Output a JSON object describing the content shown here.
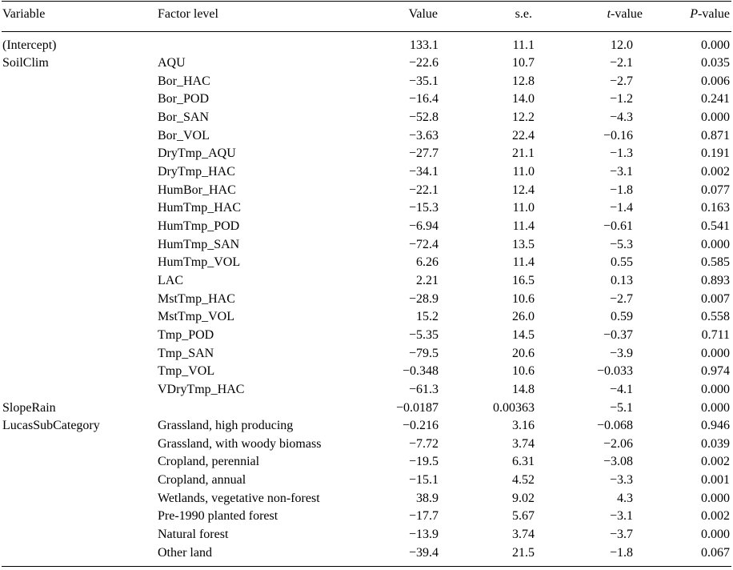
{
  "header": {
    "variable": "Variable",
    "factor_level": "Factor level",
    "value": "Value",
    "se": "s.e.",
    "t_italic": "t",
    "t_rest": "-value",
    "p_italic": "P",
    "p_rest": "-value"
  },
  "rows": [
    {
      "variable": "(Intercept)",
      "level": "",
      "value": "133.1",
      "se": "11.1",
      "t": "12.0",
      "p": "0.000"
    },
    {
      "variable": "SoilClim",
      "level": "AQU",
      "value": "−22.6",
      "se": "10.7",
      "t": "−2.1",
      "p": "0.035"
    },
    {
      "variable": "",
      "level": "Bor_HAC",
      "value": "−35.1",
      "se": "12.8",
      "t": "−2.7",
      "p": "0.006"
    },
    {
      "variable": "",
      "level": "Bor_POD",
      "value": "−16.4",
      "se": "14.0",
      "t": "−1.2",
      "p": "0.241"
    },
    {
      "variable": "",
      "level": "Bor_SAN",
      "value": "−52.8",
      "se": "12.2",
      "t": "−4.3",
      "p": "0.000"
    },
    {
      "variable": "",
      "level": "Bor_VOL",
      "value": "−3.63",
      "se": "22.4",
      "t": "−0.16",
      "p": "0.871"
    },
    {
      "variable": "",
      "level": "DryTmp_AQU",
      "value": "−27.7",
      "se": "21.1",
      "t": "−1.3",
      "p": "0.191"
    },
    {
      "variable": "",
      "level": "DryTmp_HAC",
      "value": "−34.1",
      "se": "11.0",
      "t": "−3.1",
      "p": "0.002"
    },
    {
      "variable": "",
      "level": "HumBor_HAC",
      "value": "−22.1",
      "se": "12.4",
      "t": "−1.8",
      "p": "0.077"
    },
    {
      "variable": "",
      "level": "HumTmp_HAC",
      "value": "−15.3",
      "se": "11.0",
      "t": "−1.4",
      "p": "0.163"
    },
    {
      "variable": "",
      "level": "HumTmp_POD",
      "value": "−6.94",
      "se": "11.4",
      "t": "−0.61",
      "p": "0.541"
    },
    {
      "variable": "",
      "level": "HumTmp_SAN",
      "value": "−72.4",
      "se": "13.5",
      "t": "−5.3",
      "p": "0.000"
    },
    {
      "variable": "",
      "level": "HumTmp_VOL",
      "value": "6.26",
      "se": "11.4",
      "t": "0.55",
      "p": "0.585"
    },
    {
      "variable": "",
      "level": "LAC",
      "value": "2.21",
      "se": "16.5",
      "t": "0.13",
      "p": "0.893"
    },
    {
      "variable": "",
      "level": "MstTmp_HAC",
      "value": "−28.9",
      "se": "10.6",
      "t": "−2.7",
      "p": "0.007"
    },
    {
      "variable": "",
      "level": "MstTmp_VOL",
      "value": "15.2",
      "se": "26.0",
      "t": "0.59",
      "p": "0.558"
    },
    {
      "variable": "",
      "level": "Tmp_POD",
      "value": "−5.35",
      "se": "14.5",
      "t": "−0.37",
      "p": "0.711"
    },
    {
      "variable": "",
      "level": "Tmp_SAN",
      "value": "−79.5",
      "se": "20.6",
      "t": "−3.9",
      "p": "0.000"
    },
    {
      "variable": "",
      "level": "Tmp_VOL",
      "value": "−0.348",
      "se": "10.6",
      "t": "−0.033",
      "p": "0.974"
    },
    {
      "variable": "",
      "level": "VDryTmp_HAC",
      "value": "−61.3",
      "se": "14.8",
      "t": "−4.1",
      "p": "0.000"
    },
    {
      "variable": "SlopeRain",
      "level": "",
      "value": "−0.0187",
      "se": "0.00363",
      "t": "−5.1",
      "p": "0.000"
    },
    {
      "variable": "LucasSubCategory",
      "level": "Grassland, high producing",
      "value": "−0.216",
      "se": "3.16",
      "t": "−0.068",
      "p": "0.946"
    },
    {
      "variable": "",
      "level": "Grassland, with woody biomass",
      "value": "−7.72",
      "se": "3.74",
      "t": "−2.06",
      "p": "0.039"
    },
    {
      "variable": "",
      "level": "Cropland, perennial",
      "value": "−19.5",
      "se": "6.31",
      "t": "−3.08",
      "p": "0.002"
    },
    {
      "variable": "",
      "level": "Cropland, annual",
      "value": "−15.1",
      "se": "4.52",
      "t": "−3.3",
      "p": "0.001"
    },
    {
      "variable": "",
      "level": "Wetlands, vegetative non-forest",
      "value": "38.9",
      "se": "9.02",
      "t": "4.3",
      "p": "0.000"
    },
    {
      "variable": "",
      "level": "Pre-1990 planted forest",
      "value": "−17.7",
      "se": "5.67",
      "t": "−3.1",
      "p": "0.002"
    },
    {
      "variable": "",
      "level": "Natural forest",
      "value": "−13.9",
      "se": "3.74",
      "t": "−3.7",
      "p": "0.000"
    },
    {
      "variable": "",
      "level": "Other land",
      "value": "−39.4",
      "se": "21.5",
      "t": "−1.8",
      "p": "0.067"
    }
  ]
}
